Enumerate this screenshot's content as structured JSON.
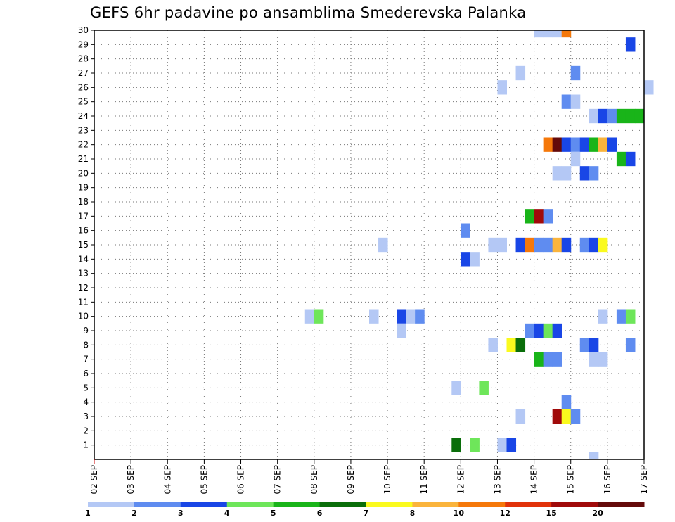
{
  "chart_data": {
    "type": "heatmap",
    "title": "GEFS 6hr padavine po ansamblima Smederevska Palanka",
    "x_tick_labels": [
      "02 SEP",
      "03 SEP",
      "04 SEP",
      "05 SEP",
      "06 SEP",
      "07 SEP",
      "08 SEP",
      "09 SEP",
      "10 SEP",
      "11 SEP",
      "12 SEP",
      "13 SEP",
      "14 SEP",
      "15 SEP",
      "16 SEP",
      "17 SEP"
    ],
    "x_range_days": [
      2,
      17
    ],
    "step_hours": 6,
    "y_range": [
      0,
      30
    ],
    "y_ticks": [
      1,
      2,
      3,
      4,
      5,
      6,
      7,
      8,
      9,
      10,
      11,
      12,
      13,
      14,
      15,
      16,
      17,
      18,
      19,
      20,
      21,
      22,
      23,
      24,
      25,
      26,
      27,
      28,
      29,
      30
    ],
    "grid": true,
    "colorbar": {
      "labels": [
        "1",
        "2",
        "3",
        "4",
        "5",
        "6",
        "7",
        "8",
        "10",
        "12",
        "15",
        "20"
      ],
      "colors": [
        "#b4c8f5",
        "#5f8cf0",
        "#1946e6",
        "#6ee65a",
        "#19b419",
        "#0a6e0a",
        "#fafa1e",
        "#fab43c",
        "#f5780a",
        "#e1320a",
        "#a00a0a",
        "#640a0a"
      ]
    },
    "cells": [
      {
        "member": 30,
        "day": 14.0,
        "cat": 1
      },
      {
        "member": 30,
        "day": 14.25,
        "cat": 1
      },
      {
        "member": 30,
        "day": 14.5,
        "cat": 1
      },
      {
        "member": 30,
        "day": 14.75,
        "cat": 9
      },
      {
        "member": 29,
        "day": 16.5,
        "cat": 3
      },
      {
        "member": 27,
        "day": 13.5,
        "cat": 1
      },
      {
        "member": 27,
        "day": 15.0,
        "cat": 2
      },
      {
        "member": 26,
        "day": 13.0,
        "cat": 1
      },
      {
        "member": 26,
        "day": 17.0,
        "cat": 1
      },
      {
        "member": 25,
        "day": 14.75,
        "cat": 2
      },
      {
        "member": 25,
        "day": 15.0,
        "cat": 1
      },
      {
        "member": 24,
        "day": 15.5,
        "cat": 1
      },
      {
        "member": 24,
        "day": 15.75,
        "cat": 3
      },
      {
        "member": 24,
        "day": 16.0,
        "cat": 2
      },
      {
        "member": 24,
        "day": 16.25,
        "cat": 5
      },
      {
        "member": 24,
        "day": 16.5,
        "cat": 5
      },
      {
        "member": 24,
        "day": 16.75,
        "cat": 5
      },
      {
        "member": 22,
        "day": 14.25,
        "cat": 9
      },
      {
        "member": 22,
        "day": 14.5,
        "cat": 12
      },
      {
        "member": 22,
        "day": 14.75,
        "cat": 3
      },
      {
        "member": 22,
        "day": 15.0,
        "cat": 2
      },
      {
        "member": 22,
        "day": 15.25,
        "cat": 3
      },
      {
        "member": 22,
        "day": 15.5,
        "cat": 5
      },
      {
        "member": 22,
        "day": 15.75,
        "cat": 8
      },
      {
        "member": 22,
        "day": 16.0,
        "cat": 3
      },
      {
        "member": 21,
        "day": 15.0,
        "cat": 1
      },
      {
        "member": 21,
        "day": 16.25,
        "cat": 5
      },
      {
        "member": 21,
        "day": 16.5,
        "cat": 3
      },
      {
        "member": 20,
        "day": 14.5,
        "cat": 1
      },
      {
        "member": 20,
        "day": 14.75,
        "cat": 1
      },
      {
        "member": 20,
        "day": 15.25,
        "cat": 3
      },
      {
        "member": 20,
        "day": 15.5,
        "cat": 2
      },
      {
        "member": 17,
        "day": 13.75,
        "cat": 5
      },
      {
        "member": 17,
        "day": 14.0,
        "cat": 11
      },
      {
        "member": 17,
        "day": 14.25,
        "cat": 2
      },
      {
        "member": 16,
        "day": 12.0,
        "cat": 2
      },
      {
        "member": 15,
        "day": 9.75,
        "cat": 1
      },
      {
        "member": 15,
        "day": 12.75,
        "cat": 1
      },
      {
        "member": 15,
        "day": 13.0,
        "cat": 1
      },
      {
        "member": 15,
        "day": 13.5,
        "cat": 3
      },
      {
        "member": 15,
        "day": 13.75,
        "cat": 9
      },
      {
        "member": 15,
        "day": 14.0,
        "cat": 2
      },
      {
        "member": 15,
        "day": 14.25,
        "cat": 2
      },
      {
        "member": 15,
        "day": 14.5,
        "cat": 8
      },
      {
        "member": 15,
        "day": 14.75,
        "cat": 3
      },
      {
        "member": 15,
        "day": 15.25,
        "cat": 2
      },
      {
        "member": 15,
        "day": 15.5,
        "cat": 3
      },
      {
        "member": 15,
        "day": 15.75,
        "cat": 7
      },
      {
        "member": 14,
        "day": 12.0,
        "cat": 3
      },
      {
        "member": 14,
        "day": 12.25,
        "cat": 1
      },
      {
        "member": 10,
        "day": 7.75,
        "cat": 1
      },
      {
        "member": 10,
        "day": 8.0,
        "cat": 4
      },
      {
        "member": 10,
        "day": 9.5,
        "cat": 1
      },
      {
        "member": 10,
        "day": 10.25,
        "cat": 3
      },
      {
        "member": 10,
        "day": 10.5,
        "cat": 1
      },
      {
        "member": 10,
        "day": 10.75,
        "cat": 2
      },
      {
        "member": 10,
        "day": 15.75,
        "cat": 1
      },
      {
        "member": 10,
        "day": 16.25,
        "cat": 2
      },
      {
        "member": 10,
        "day": 16.5,
        "cat": 4
      },
      {
        "member": 9,
        "day": 10.25,
        "cat": 1
      },
      {
        "member": 9,
        "day": 13.75,
        "cat": 2
      },
      {
        "member": 9,
        "day": 14.0,
        "cat": 3
      },
      {
        "member": 9,
        "day": 14.25,
        "cat": 4
      },
      {
        "member": 9,
        "day": 14.5,
        "cat": 3
      },
      {
        "member": 8,
        "day": 12.75,
        "cat": 1
      },
      {
        "member": 8,
        "day": 13.25,
        "cat": 7
      },
      {
        "member": 8,
        "day": 13.5,
        "cat": 6
      },
      {
        "member": 8,
        "day": 15.25,
        "cat": 2
      },
      {
        "member": 8,
        "day": 15.5,
        "cat": 3
      },
      {
        "member": 8,
        "day": 16.5,
        "cat": 2
      },
      {
        "member": 7,
        "day": 14.0,
        "cat": 5
      },
      {
        "member": 7,
        "day": 14.25,
        "cat": 2
      },
      {
        "member": 7,
        "day": 14.5,
        "cat": 2
      },
      {
        "member": 7,
        "day": 15.5,
        "cat": 1
      },
      {
        "member": 7,
        "day": 15.75,
        "cat": 1
      },
      {
        "member": 5,
        "day": 11.75,
        "cat": 1
      },
      {
        "member": 5,
        "day": 12.5,
        "cat": 4
      },
      {
        "member": 4,
        "day": 14.75,
        "cat": 2
      },
      {
        "member": 3,
        "day": 13.5,
        "cat": 1
      },
      {
        "member": 3,
        "day": 14.5,
        "cat": 11
      },
      {
        "member": 3,
        "day": 14.75,
        "cat": 7
      },
      {
        "member": 3,
        "day": 15.0,
        "cat": 2
      },
      {
        "member": 1,
        "day": 11.75,
        "cat": 6
      },
      {
        "member": 1,
        "day": 12.25,
        "cat": 4
      },
      {
        "member": 1,
        "day": 13.0,
        "cat": 1
      },
      {
        "member": 1,
        "day": 13.25,
        "cat": 3
      },
      {
        "member": 0,
        "day": 15.5,
        "cat": 1
      }
    ]
  }
}
